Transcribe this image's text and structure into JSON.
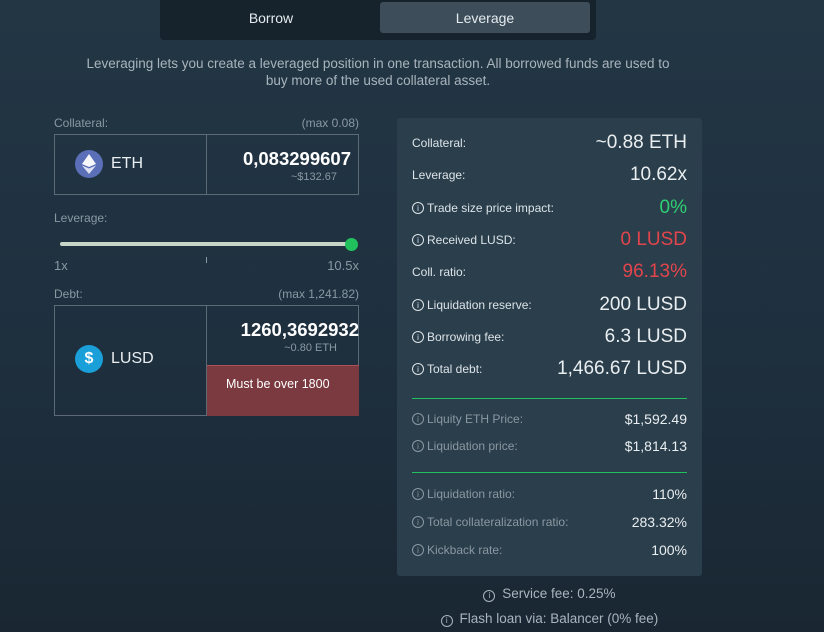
{
  "tabs": {
    "borrow": "Borrow",
    "leverage": "Leverage"
  },
  "intro": "Leveraging lets you create a leveraged position in one transaction. All borrowed funds are used to buy more of the used collateral asset.",
  "collateral": {
    "label": "Collateral:",
    "max": "(max 0.08)",
    "asset": "ETH",
    "amount": "0,083299607",
    "usd": "~$132.67"
  },
  "leverage": {
    "label": "Leverage:",
    "min_label": "1x",
    "max_label": "10.5x",
    "value_fraction": 1.0
  },
  "debt": {
    "label": "Debt:",
    "max": "(max 1,241.82)",
    "asset": "LUSD",
    "amount": "1260,3692932",
    "eth": "~0.80 ETH",
    "warning": "Must be over 1800"
  },
  "summary": {
    "collateral": {
      "label": "Collateral:",
      "value": "~0.88 ETH"
    },
    "leverage": {
      "label": "Leverage:",
      "value": "10.62x"
    },
    "price_impact": {
      "label": "Trade size price impact:",
      "value": "0%"
    },
    "received": {
      "label": "Received LUSD:",
      "value": "0 LUSD"
    },
    "coll_ratio": {
      "label": "Coll. ratio:",
      "value": "96.13%"
    },
    "liq_reserve": {
      "label": "Liquidation reserve:",
      "value": "200 LUSD"
    },
    "borrow_fee": {
      "label": "Borrowing fee:",
      "value": "6.3 LUSD"
    },
    "total_debt": {
      "label": "Total debt:",
      "value": "1,466.67 LUSD"
    },
    "eth_price": {
      "label": "Liquity ETH Price:",
      "value": "$1,592.49"
    },
    "liq_price": {
      "label": "Liquidation price:",
      "value": "$1,814.13"
    },
    "liq_ratio": {
      "label": "Liquidation ratio:",
      "value": "110%"
    },
    "total_coll_ratio": {
      "label": "Total collateralization ratio:",
      "value": "283.32%"
    },
    "kickback": {
      "label": "Kickback rate:",
      "value": "100%"
    }
  },
  "footer": {
    "service_fee": "Service fee: 0.25%",
    "flash_loan": "Flash loan via: Balancer (0% fee)"
  },
  "colors": {
    "accent_green": "#21c25e",
    "error_red": "#e3454c",
    "warning_bg": "#7a3a40"
  }
}
